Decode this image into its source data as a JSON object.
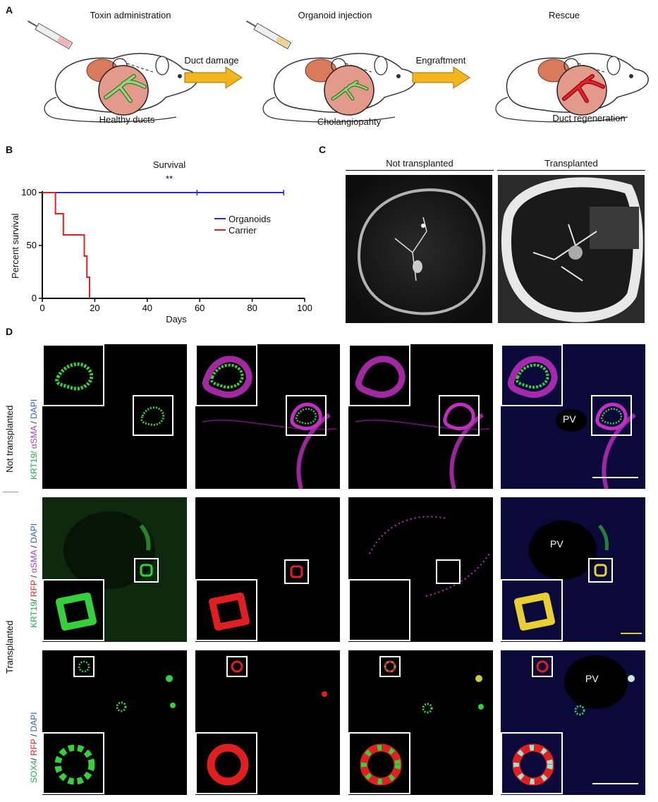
{
  "panel_labels": {
    "a": "A",
    "b": "B",
    "c": "C",
    "d": "D"
  },
  "panel_a": {
    "stages": [
      {
        "title": "Toxin administration",
        "caption": "Healthy ducts"
      },
      {
        "title": "Organoid injection",
        "caption": "Cholangiopahty"
      },
      {
        "title": "Rescue",
        "caption": "Duct regeneration"
      }
    ],
    "arrows": [
      "Duct damage",
      "Engraftment"
    ],
    "colors": {
      "duct_healthy": "#9fd07a",
      "duct_regenerated": "#e8202a",
      "liver_circle": "#e49a8a",
      "arrow": "#f2b51c"
    }
  },
  "chart_data": {
    "type": "line",
    "title": "Survival",
    "significance": "**",
    "xlabel": "Days",
    "ylabel": "Percent survival",
    "xlim": [
      0,
      100
    ],
    "ylim": [
      0,
      100
    ],
    "xticks": [
      0,
      20,
      40,
      60,
      80,
      100
    ],
    "yticks": [
      0,
      50,
      100
    ],
    "legend_position": "right",
    "series": [
      {
        "name": "Organoids",
        "color": "#2b2bd0",
        "x": [
          0,
          92
        ],
        "y": [
          100,
          100
        ],
        "censor_x": [
          59,
          92
        ]
      },
      {
        "name": "Carrier",
        "color": "#e02020",
        "x": [
          0,
          5,
          5,
          8,
          8,
          16,
          16,
          17,
          17,
          18,
          18
        ],
        "y": [
          100,
          100,
          80,
          80,
          60,
          60,
          40,
          40,
          20,
          20,
          0
        ]
      }
    ]
  },
  "panel_c": {
    "headers": [
      "Not transplanted",
      "Transplanted"
    ]
  },
  "panel_d": {
    "row_groups": [
      "Not transplanted",
      "Transplanted"
    ],
    "stain_labels": [
      [
        {
          "t": "KRT19",
          "c": "#1fae4a"
        },
        {
          "t": "/ ",
          "c": "#1fae4a"
        },
        {
          "t": "αSMA",
          "c": "#a040c0"
        },
        {
          "t": " / ",
          "c": "#333"
        },
        {
          "t": "DAPI",
          "c": "#3060d0"
        }
      ],
      [
        {
          "t": "KRT19",
          "c": "#1fae4a"
        },
        {
          "t": "/ ",
          "c": "#333"
        },
        {
          "t": "RFP",
          "c": "#e02020"
        },
        {
          "t": " / ",
          "c": "#333"
        },
        {
          "t": "αSMA",
          "c": "#a040c0"
        },
        {
          "t": " / ",
          "c": "#333"
        },
        {
          "t": "DAPI",
          "c": "#3060d0"
        }
      ],
      [
        {
          "t": "SOX4",
          "c": "#1fae4a"
        },
        {
          "t": "/ ",
          "c": "#333"
        },
        {
          "t": "RFP",
          "c": "#e02020"
        },
        {
          "t": " / ",
          "c": "#333"
        },
        {
          "t": "DAPI",
          "c": "#3060d0"
        }
      ]
    ],
    "pv_label": "PV"
  }
}
